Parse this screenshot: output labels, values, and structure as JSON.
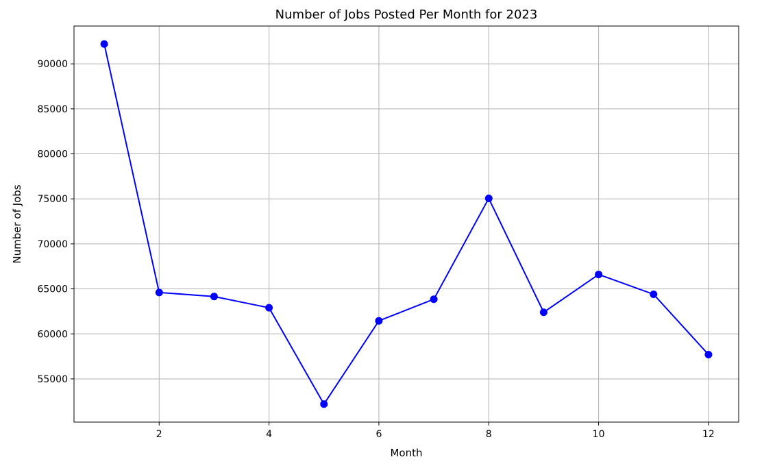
{
  "chart_data": {
    "type": "line",
    "title": "Number of Jobs Posted Per Month for 2023",
    "xlabel": "Month",
    "ylabel": "Number of Jobs",
    "x": [
      1,
      2,
      3,
      4,
      5,
      6,
      7,
      8,
      9,
      10,
      11,
      12
    ],
    "series": [
      {
        "values": [
          92200,
          64600,
          64150,
          62900,
          52200,
          61450,
          63850,
          75050,
          62400,
          66600,
          64400,
          57700
        ],
        "color": "#0000ff",
        "marker": "circle"
      }
    ],
    "xlim": [
      0.45,
      12.55
    ],
    "ylim": [
      50200,
      94200
    ],
    "xticks": [
      2,
      4,
      6,
      8,
      10,
      12
    ],
    "yticks": [
      55000,
      60000,
      65000,
      70000,
      75000,
      80000,
      85000,
      90000
    ],
    "grid": true
  }
}
